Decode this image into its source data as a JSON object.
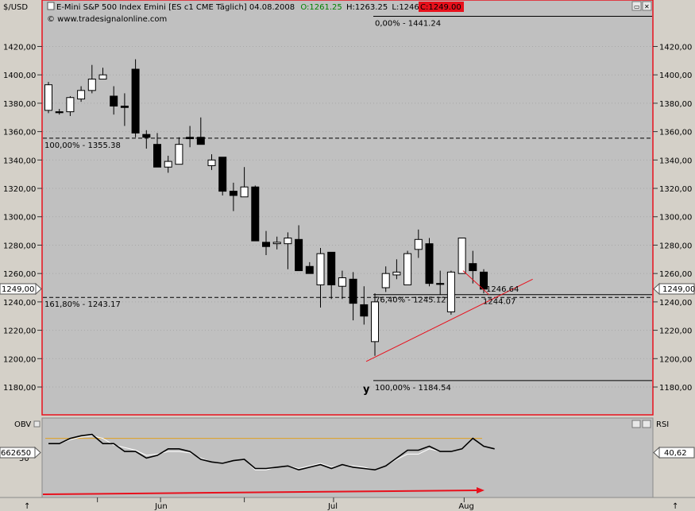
{
  "header": {
    "axis_unit": "$/USD",
    "instrument": "E-Mini S&P 500 Index Emini [ES c1 CME  Täglich] 04.08.2008",
    "open": "O:1261.25",
    "high": "H:1263.25",
    "low": "L:1246.25",
    "close": "C:1249.00",
    "watermark": "© www.tradesignalonline.com"
  },
  "colors": {
    "background": "#c0c0c0",
    "frame": "#e8101c",
    "open_green": "#008000",
    "close_red_bg": "#e8101c",
    "trend": "#e8101c",
    "obv_orange": "#e0a020"
  },
  "labels": {
    "last_price": "1249,00",
    "fib_top": "0,00% - 1441.24",
    "fib_100a": "100,00% - 1355.38",
    "fib_1618": "161,80% - 1243.17",
    "fib_764": "76,40% - 1245.12",
    "fib_100b": "100,00% - 1184.54",
    "trend_a": "1246.64",
    "trend_b": "1244.07",
    "wave": "y"
  },
  "indicator": {
    "left_name": "OBV",
    "right_name": "RSI",
    "left_value": "662650",
    "left_tick": "50",
    "right_value": "40,62"
  },
  "chart_data": {
    "type": "candlestick",
    "y_range": [
      1170,
      1446
    ],
    "y_ticks": [
      "1180,00",
      "1200,00",
      "1220,00",
      "1240,00",
      "1260,00",
      "1280,00",
      "1300,00",
      "1320,00",
      "1340,00",
      "1360,00",
      "1380,00",
      "1400,00",
      "1420,00"
    ],
    "y_tick_values": [
      1180,
      1200,
      1220,
      1240,
      1260,
      1280,
      1300,
      1320,
      1340,
      1360,
      1380,
      1400,
      1420
    ],
    "x_labels": [
      "Jun",
      "Jul",
      "Aug"
    ],
    "x_label_index": [
      10.3,
      26.2,
      38.2
    ],
    "candles": [
      {
        "o": 1375,
        "h": 1395,
        "l": 1373,
        "c": 1393
      },
      {
        "o": 1374,
        "h": 1376,
        "l": 1372,
        "c": 1374
      },
      {
        "o": 1374,
        "h": 1385,
        "l": 1371,
        "c": 1384
      },
      {
        "o": 1383,
        "h": 1392,
        "l": 1381,
        "c": 1389
      },
      {
        "o": 1389,
        "h": 1407,
        "l": 1387,
        "c": 1397
      },
      {
        "o": 1397,
        "h": 1405,
        "l": 1397,
        "c": 1400
      },
      {
        "o": 1385,
        "h": 1392,
        "l": 1372,
        "c": 1378
      },
      {
        "o": 1378,
        "h": 1387,
        "l": 1364,
        "c": 1377
      },
      {
        "o": 1404,
        "h": 1411,
        "l": 1356,
        "c": 1359
      },
      {
        "o": 1358,
        "h": 1361,
        "l": 1348,
        "c": 1356
      },
      {
        "o": 1351,
        "h": 1359,
        "l": 1335,
        "c": 1335
      },
      {
        "o": 1335,
        "h": 1343,
        "l": 1331,
        "c": 1339
      },
      {
        "o": 1337,
        "h": 1356,
        "l": 1337,
        "c": 1351
      },
      {
        "o": 1356,
        "h": 1364,
        "l": 1349,
        "c": 1355
      },
      {
        "o": 1356,
        "h": 1370,
        "l": 1351,
        "c": 1351
      },
      {
        "o": 1336,
        "h": 1344,
        "l": 1333,
        "c": 1340
      },
      {
        "o": 1342,
        "h": 1342,
        "l": 1315,
        "c": 1318
      },
      {
        "o": 1318,
        "h": 1324,
        "l": 1304,
        "c": 1315
      },
      {
        "o": 1314,
        "h": 1335,
        "l": 1314,
        "c": 1321
      },
      {
        "o": 1321,
        "h": 1322,
        "l": 1283,
        "c": 1283
      },
      {
        "o": 1282,
        "h": 1290,
        "l": 1273,
        "c": 1279
      },
      {
        "o": 1281,
        "h": 1286,
        "l": 1277,
        "c": 1282
      },
      {
        "o": 1281,
        "h": 1289,
        "l": 1263,
        "c": 1285
      },
      {
        "o": 1284,
        "h": 1294,
        "l": 1262,
        "c": 1262
      },
      {
        "o": 1265,
        "h": 1268,
        "l": 1261,
        "c": 1260
      },
      {
        "o": 1252,
        "h": 1278,
        "l": 1236,
        "c": 1274
      },
      {
        "o": 1275,
        "h": 1275,
        "l": 1242,
        "c": 1252
      },
      {
        "o": 1251,
        "h": 1262,
        "l": 1242,
        "c": 1257
      },
      {
        "o": 1256,
        "h": 1261,
        "l": 1227,
        "c": 1239
      },
      {
        "o": 1238,
        "h": 1251,
        "l": 1224,
        "c": 1230
      },
      {
        "o": 1212,
        "h": 1246,
        "l": 1202,
        "c": 1240
      },
      {
        "o": 1250,
        "h": 1265,
        "l": 1247,
        "c": 1260
      },
      {
        "o": 1259,
        "h": 1270,
        "l": 1256,
        "c": 1261
      },
      {
        "o": 1252,
        "h": 1276,
        "l": 1252,
        "c": 1274
      },
      {
        "o": 1277,
        "h": 1291,
        "l": 1271,
        "c": 1284
      },
      {
        "o": 1281,
        "h": 1285,
        "l": 1251,
        "c": 1253
      },
      {
        "o": 1253,
        "h": 1262,
        "l": 1245,
        "c": 1253
      },
      {
        "o": 1233,
        "h": 1262,
        "l": 1231,
        "c": 1261
      },
      {
        "o": 1260,
        "h": 1285,
        "l": 1260,
        "c": 1285
      },
      {
        "o": 1267,
        "h": 1276,
        "l": 1253,
        "c": 1262
      },
      {
        "o": 1261,
        "h": 1263,
        "l": 1246,
        "c": 1249
      }
    ],
    "fib_levels": [
      1441.24,
      1355.38,
      1243.17,
      1245.12,
      1184.54
    ],
    "trendline": {
      "from": [
        29.2,
        1198
      ],
      "to": [
        44.5,
        1256
      ]
    },
    "obv": [
      0.6,
      0.6,
      0.8,
      0.9,
      0.95,
      0.6,
      0.6,
      0.3,
      0.3,
      0.05,
      0.15,
      0.4,
      0.4,
      0.3,
      0.0,
      -0.1,
      -0.15,
      -0.05,
      0.0,
      -0.35,
      -0.35,
      -0.3,
      -0.25,
      -0.4,
      -0.3,
      -0.2,
      -0.35,
      -0.2,
      -0.3,
      -0.35,
      -0.4,
      -0.25,
      0.05,
      0.35,
      0.35,
      0.5,
      0.3,
      0.3,
      0.4,
      0.8,
      0.5,
      0.4
    ],
    "rsi": [
      0.6,
      0.6,
      0.75,
      0.85,
      0.9,
      0.8,
      0.55,
      0.45,
      0.35,
      0.15,
      0.2,
      0.3,
      0.3,
      0.25,
      0.05,
      -0.1,
      -0.15,
      -0.05,
      0.0,
      -0.4,
      -0.4,
      -0.3,
      -0.25,
      -0.35,
      -0.25,
      -0.15,
      -0.3,
      -0.2,
      -0.25,
      -0.3,
      -0.4,
      -0.25,
      0.0,
      0.2,
      0.2,
      0.4,
      0.3,
      0.3,
      0.4,
      0.8,
      0.5,
      0.4
    ],
    "obv_reference": 0.8
  }
}
